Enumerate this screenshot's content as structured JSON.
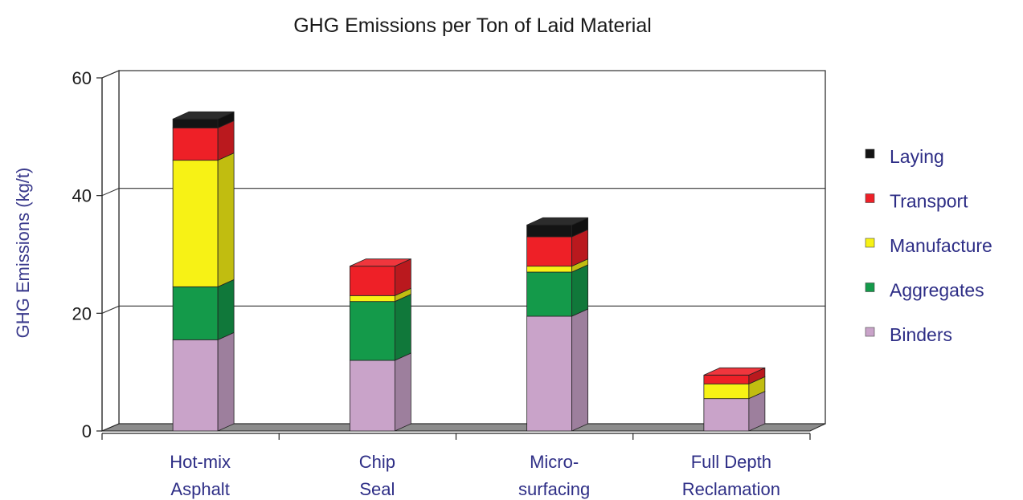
{
  "chart_data": {
    "type": "bar",
    "stacked": true,
    "three_d": true,
    "title": "GHG Emissions per Ton of Laid Material",
    "xlabel": "",
    "ylabel": "GHG Emissions (kg/t)",
    "ylim": [
      0,
      60
    ],
    "yticks": [
      "0",
      "20",
      "40",
      "60"
    ],
    "grid": true,
    "legend_position": "right",
    "categories": [
      [
        "Hot-mix",
        "Asphalt"
      ],
      [
        "Chip",
        "Seal"
      ],
      [
        "Micro-",
        "surfacing"
      ],
      [
        "Full Depth",
        "Reclamation"
      ]
    ],
    "series": [
      {
        "name": "Binders",
        "color": "#c9a3c9",
        "values": [
          15.5,
          12,
          19.5,
          5.5
        ]
      },
      {
        "name": "Aggregates",
        "color": "#149a4a",
        "values": [
          9,
          10,
          7.5,
          0
        ]
      },
      {
        "name": "Manufacture",
        "color": "#f7f215",
        "values": [
          21.5,
          1,
          1,
          2.5
        ]
      },
      {
        "name": "Transport",
        "color": "#ee2027",
        "values": [
          5.5,
          5,
          5,
          1.5
        ]
      },
      {
        "name": "Laying",
        "color": "#141414",
        "values": [
          1.5,
          0,
          2,
          0
        ]
      }
    ],
    "legend_order": [
      "Laying",
      "Transport",
      "Manufacture",
      "Aggregates",
      "Binders"
    ]
  }
}
